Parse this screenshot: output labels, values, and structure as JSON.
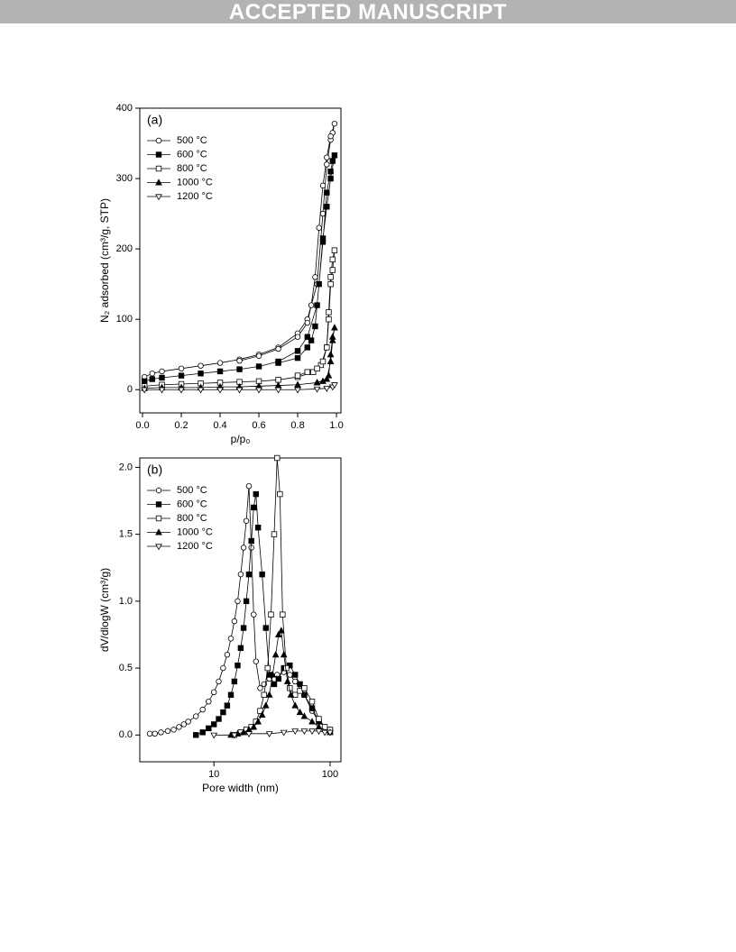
{
  "header": {
    "title": "ACCEPTED MANUSCRIPT"
  },
  "chart_data": [
    {
      "type": "line",
      "panel": "(a)",
      "xlabel": "p/p₀",
      "ylabel": "N₂ adsorbed (cm³/g, STP)",
      "xscale": "linear",
      "xlim": [
        -0.014,
        1.023
      ],
      "ylim": [
        -33,
        400
      ],
      "xticks": [
        {
          "value": 0,
          "label": "0.0"
        },
        0.2,
        0.4,
        0.6,
        0.8,
        {
          "value": 1,
          "label": "1.0"
        }
      ],
      "yticks": [
        0,
        100,
        200,
        300,
        400
      ],
      "legend": "upper left",
      "series": [
        {
          "name": "500 °C",
          "color": "#000000",
          "marker": "circle-open",
          "x": [
            0.01,
            0.05,
            0.1,
            0.2,
            0.3,
            0.4,
            0.5,
            0.6,
            0.7,
            0.8,
            0.85,
            0.9,
            0.93,
            0.95,
            0.97,
            0.98,
            0.99,
            0.97,
            0.95,
            0.93,
            0.91,
            0.89,
            0.87,
            0.85,
            0.8,
            0.7,
            0.6,
            0.5
          ],
          "values": [
            18,
            23,
            26,
            30,
            34,
            38,
            43,
            50,
            60,
            80,
            100,
            150,
            250,
            320,
            355,
            365,
            378,
            360,
            330,
            290,
            230,
            160,
            120,
            95,
            75,
            58,
            48,
            41
          ]
        },
        {
          "name": "600 °C",
          "color": "#000000",
          "marker": "square-filled",
          "x": [
            0.01,
            0.05,
            0.1,
            0.2,
            0.3,
            0.4,
            0.5,
            0.6,
            0.7,
            0.8,
            0.85,
            0.9,
            0.93,
            0.95,
            0.97,
            0.98,
            0.99,
            0.97,
            0.95,
            0.93,
            0.91,
            0.89,
            0.87,
            0.85,
            0.8,
            0.7
          ],
          "values": [
            12,
            15,
            17,
            20,
            23,
            26,
            29,
            33,
            40,
            55,
            75,
            120,
            210,
            280,
            310,
            325,
            333,
            300,
            260,
            215,
            150,
            90,
            70,
            60,
            45,
            38
          ]
        },
        {
          "name": "800 °C",
          "color": "#000000",
          "marker": "square-open",
          "x": [
            0.01,
            0.1,
            0.2,
            0.3,
            0.4,
            0.5,
            0.6,
            0.7,
            0.8,
            0.88,
            0.92,
            0.95,
            0.96,
            0.97,
            0.98,
            0.99,
            0.98,
            0.97,
            0.96,
            0.95,
            0.93,
            0.9,
            0.85,
            0.8
          ],
          "values": [
            5,
            7,
            8,
            9,
            10,
            11,
            12,
            14,
            18,
            25,
            35,
            60,
            110,
            160,
            185,
            198,
            170,
            150,
            100,
            60,
            40,
            30,
            25,
            20
          ]
        },
        {
          "name": "1000 °C",
          "color": "#000000",
          "marker": "triangle-filled",
          "x": [
            0.01,
            0.1,
            0.2,
            0.3,
            0.4,
            0.5,
            0.6,
            0.7,
            0.8,
            0.9,
            0.95,
            0.97,
            0.98,
            0.99,
            0.98,
            0.97,
            0.96,
            0.93,
            0.9
          ],
          "values": [
            2,
            3,
            3,
            3,
            4,
            4,
            5,
            6,
            7,
            10,
            15,
            40,
            70,
            88,
            75,
            50,
            20,
            12,
            10
          ]
        },
        {
          "name": "1200 °C",
          "color": "#000000",
          "marker": "triangle-down-open",
          "x": [
            0.01,
            0.1,
            0.2,
            0.3,
            0.4,
            0.5,
            0.6,
            0.7,
            0.8,
            0.9,
            0.95,
            0.98,
            0.99
          ],
          "values": [
            0,
            0,
            0,
            0,
            0,
            0,
            0,
            0,
            0,
            1,
            2,
            4,
            7
          ]
        }
      ]
    },
    {
      "type": "line",
      "panel": "(b)",
      "xlabel": "Pore width (nm)",
      "ylabel": "dV/dlogW (cm³/g)",
      "xscale": "log",
      "xlim": [
        2.3,
        124
      ],
      "ylim": [
        -0.2,
        2.07
      ],
      "xticks": [
        10,
        100
      ],
      "yticks": [
        {
          "value": 0,
          "label": "0.0"
        },
        0.5,
        {
          "value": 1,
          "label": "1.0"
        },
        1.5,
        {
          "value": 2,
          "label": "2.0"
        }
      ],
      "legend": "upper left",
      "series": [
        {
          "name": "500 °C",
          "color": "#000000",
          "marker": "circle-open",
          "x": [
            2.8,
            3.1,
            3.5,
            4,
            4.5,
            5,
            5.5,
            6,
            7,
            8,
            9,
            10,
            11,
            12,
            13,
            14,
            15,
            16,
            17,
            18,
            19,
            20,
            21,
            22,
            23,
            25,
            27,
            30,
            35,
            40,
            45,
            50,
            60,
            70,
            80,
            100
          ],
          "values": [
            0.01,
            0.01,
            0.02,
            0.03,
            0.04,
            0.06,
            0.08,
            0.1,
            0.14,
            0.19,
            0.25,
            0.32,
            0.4,
            0.5,
            0.6,
            0.72,
            0.85,
            1.0,
            1.2,
            1.4,
            1.6,
            1.86,
            1.4,
            0.9,
            0.55,
            0.35,
            0.38,
            0.42,
            0.45,
            0.47,
            0.45,
            0.4,
            0.3,
            0.18,
            0.1,
            0.04
          ]
        },
        {
          "name": "600 °C",
          "color": "#000000",
          "marker": "square-filled",
          "x": [
            7,
            8,
            9,
            10,
            11,
            12,
            13,
            14,
            15,
            16,
            17,
            18,
            19,
            20,
            21,
            22,
            23,
            24,
            26,
            28,
            30,
            33,
            36,
            40,
            45,
            50,
            55,
            60,
            70,
            80,
            100
          ],
          "values": [
            0.0,
            0.02,
            0.05,
            0.08,
            0.12,
            0.17,
            0.22,
            0.3,
            0.4,
            0.52,
            0.65,
            0.8,
            1.0,
            1.2,
            1.45,
            1.7,
            1.8,
            1.55,
            1.2,
            0.8,
            0.45,
            0.38,
            0.42,
            0.5,
            0.52,
            0.45,
            0.38,
            0.3,
            0.2,
            0.1,
            0.03
          ]
        },
        {
          "name": "800 °C",
          "color": "#000000",
          "marker": "square-open",
          "x": [
            15,
            17,
            19,
            21,
            23,
            25,
            27,
            29,
            31,
            33,
            35,
            37,
            39,
            42,
            45,
            50,
            55,
            60,
            70,
            80,
            90,
            100
          ],
          "values": [
            0.0,
            0.02,
            0.04,
            0.06,
            0.1,
            0.18,
            0.3,
            0.5,
            0.9,
            1.5,
            2.07,
            1.8,
            0.9,
            0.5,
            0.35,
            0.3,
            0.33,
            0.35,
            0.25,
            0.12,
            0.06,
            0.04
          ]
        },
        {
          "name": "1000 °C",
          "color": "#000000",
          "marker": "triangle-filled",
          "x": [
            14,
            16,
            18,
            20,
            22,
            24,
            26,
            28,
            30,
            32,
            34,
            36,
            38,
            40,
            43,
            46,
            50,
            55,
            60,
            70,
            80,
            100
          ],
          "values": [
            0.0,
            0.01,
            0.02,
            0.04,
            0.06,
            0.1,
            0.15,
            0.22,
            0.3,
            0.45,
            0.6,
            0.75,
            0.78,
            0.6,
            0.4,
            0.3,
            0.22,
            0.17,
            0.14,
            0.1,
            0.06,
            0.02
          ]
        },
        {
          "name": "1200 °C",
          "color": "#000000",
          "marker": "triangle-down-open",
          "x": [
            10,
            15,
            20,
            30,
            40,
            50,
            60,
            70,
            80,
            90,
            100
          ],
          "values": [
            0,
            0,
            0.01,
            0.01,
            0.02,
            0.03,
            0.03,
            0.03,
            0.03,
            0.02,
            0.02
          ]
        }
      ]
    }
  ]
}
